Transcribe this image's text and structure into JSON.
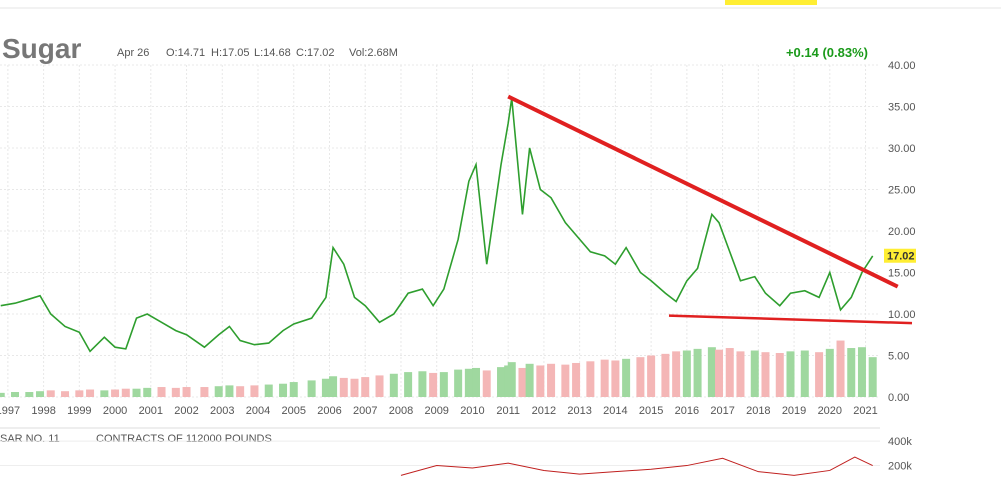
{
  "chart_data": {
    "type": "line",
    "title": "Sugar",
    "date": "Apr 26",
    "open": "O:14.71",
    "high": "H:17.05",
    "low": "L:14.68",
    "close": "C:17.02",
    "volume_label": "Vol:2.68M",
    "change": "+0.14 (0.83%)",
    "last_price": 17.02,
    "x": [
      1996.8,
      1997.2,
      1997.6,
      1997.9,
      1998.2,
      1998.6,
      1999.0,
      1999.3,
      1999.7,
      2000.0,
      2000.3,
      2000.6,
      2000.9,
      2001.3,
      2001.7,
      2002.0,
      2002.5,
      2002.9,
      2003.2,
      2003.5,
      2003.9,
      2004.3,
      2004.7,
      2005.0,
      2005.5,
      2005.9,
      2006.1,
      2006.4,
      2006.7,
      2007.0,
      2007.4,
      2007.8,
      2008.2,
      2008.6,
      2008.9,
      2009.2,
      2009.6,
      2009.9,
      2010.1,
      2010.4,
      2010.8,
      2011.0,
      2011.1,
      2011.4,
      2011.6,
      2011.9,
      2012.2,
      2012.6,
      2012.9,
      2013.3,
      2013.7,
      2014.0,
      2014.3,
      2014.7,
      2015.0,
      2015.4,
      2015.7,
      2016.0,
      2016.3,
      2016.7,
      2016.9,
      2017.2,
      2017.5,
      2017.9,
      2018.2,
      2018.6,
      2018.9,
      2019.3,
      2019.7,
      2020.0,
      2020.3,
      2020.6,
      2020.9,
      2021.2
    ],
    "series": [
      {
        "color": "#2e9e2e",
        "values": [
          11,
          11.3,
          11.8,
          12.2,
          10,
          8.5,
          7.8,
          5.5,
          7.2,
          6,
          5.8,
          9.5,
          10,
          9,
          8,
          7.5,
          6,
          7.5,
          8.5,
          6.8,
          6.3,
          6.5,
          8,
          8.8,
          9.5,
          12,
          18,
          16,
          12,
          11,
          9,
          10,
          12.5,
          13,
          11,
          13,
          19,
          26,
          28,
          16,
          28,
          33,
          36,
          22,
          30,
          25,
          24,
          21,
          19.5,
          17.5,
          17,
          16,
          18,
          15,
          14,
          12.5,
          11.5,
          14,
          15.5,
          22,
          21,
          17.5,
          14,
          14.5,
          12.5,
          11,
          12.5,
          12.8,
          12,
          15,
          10.5,
          12,
          15,
          17
        ]
      }
    ],
    "volume": {
      "up_color": "#9fd89f",
      "down_color": "#f4b6b6",
      "values": [
        0.5,
        0.6,
        0.6,
        0.7,
        0.8,
        0.7,
        0.8,
        0.9,
        0.8,
        0.9,
        1,
        1,
        1.1,
        1.2,
        1.1,
        1.2,
        1.2,
        1.3,
        1.4,
        1.3,
        1.4,
        1.5,
        1.6,
        1.8,
        2,
        2.2,
        2.5,
        2.3,
        2.2,
        2.4,
        2.6,
        2.8,
        3,
        3.1,
        2.9,
        3,
        3.3,
        3.4,
        3.5,
        3.2,
        3.6,
        3.8,
        4.2,
        3.5,
        4,
        3.8,
        4,
        3.9,
        4.1,
        4.3,
        4.5,
        4.4,
        4.6,
        4.8,
        5,
        5.2,
        5.5,
        5.6,
        5.8,
        6,
        5.7,
        5.9,
        5.5,
        5.6,
        5.4,
        5.3,
        5.5,
        5.6,
        5.4,
        5.8,
        6.8,
        5.9,
        6,
        4.8
      ]
    },
    "trendlines": [
      {
        "color": "#e02020",
        "x": [
          2011.0,
          2021.9
        ],
        "y": [
          36.2,
          13.3
        ]
      },
      {
        "color": "#e02020",
        "x": [
          2015.5,
          2022.3
        ],
        "y": [
          9.8,
          8.9
        ]
      }
    ],
    "xlim": [
      1996.78,
      2022.3
    ],
    "ylim": [
      0,
      40
    ],
    "xticks": [
      1997,
      1998,
      1999,
      2000,
      2001,
      2002,
      2003,
      2004,
      2005,
      2006,
      2007,
      2008,
      2009,
      2010,
      2011,
      2012,
      2013,
      2014,
      2015,
      2016,
      2017,
      2018,
      2019,
      2020,
      2021
    ],
    "yticks": [
      {
        "value": 0,
        "label": "0.00"
      },
      {
        "value": 5,
        "label": "5.00"
      },
      {
        "value": 10,
        "label": "10.00"
      },
      {
        "value": 15,
        "label": "15.00"
      },
      {
        "value": 20,
        "label": "20.00"
      },
      {
        "value": 25,
        "label": "25.00"
      },
      {
        "value": 30,
        "label": "30.00"
      },
      {
        "value": 35,
        "label": "35.00"
      },
      {
        "value": 40,
        "label": "40.00"
      }
    ],
    "grid": true,
    "lower_panel": {
      "title": "SAR NO. 11",
      "subtitle": "CONTRACTS OF 112000 POUNDS",
      "ylim": [
        0,
        450000
      ],
      "yticks": [
        {
          "value": 200000,
          "label": "200k"
        },
        {
          "value": 400000,
          "label": "400k"
        }
      ],
      "series": [
        {
          "color": "#c0201f",
          "x": [
            2008.0,
            2009.0,
            2010.0,
            2011.0,
            2012.0,
            2013.0,
            2014.0,
            2015.0,
            2016.0,
            2017.0,
            2018.0,
            2019.0,
            2020.0,
            2020.7,
            2021.2
          ],
          "values": [
            120000,
            200000,
            180000,
            220000,
            160000,
            130000,
            150000,
            170000,
            200000,
            260000,
            150000,
            120000,
            160000,
            270000,
            200000
          ]
        }
      ]
    }
  }
}
